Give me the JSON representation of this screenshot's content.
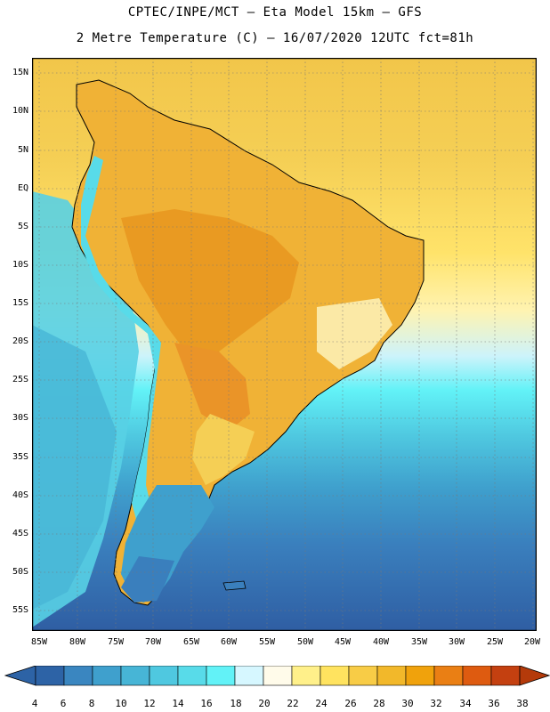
{
  "header": {
    "title_line1": "CPTEC/INPE/MCT –  Eta Model 15km – GFS",
    "title_line2": "2 Metre Temperature (C) – 16/07/2020 12UTC fct=81h"
  },
  "axes": {
    "latitude_labels": [
      "15N",
      "10N",
      "5N",
      "EQ",
      "5S",
      "10S",
      "15S",
      "20S",
      "25S",
      "30S",
      "35S",
      "40S",
      "45S",
      "50S",
      "55S"
    ],
    "longitude_labels": [
      "85W",
      "80W",
      "75W",
      "70W",
      "65W",
      "60W",
      "55W",
      "50W",
      "45W",
      "40W",
      "35W",
      "30W",
      "25W",
      "20W"
    ]
  },
  "colorbar": {
    "ticks": [
      "4",
      "6",
      "8",
      "10",
      "12",
      "14",
      "16",
      "18",
      "20",
      "22",
      "24",
      "26",
      "28",
      "30",
      "32",
      "34",
      "36",
      "38"
    ],
    "low_arrow_color": "#2d63a6",
    "high_arrow_color": "#b43a0a",
    "colors": [
      "#2d63a6",
      "#3a86c0",
      "#3fa0cd",
      "#47b5d6",
      "#4fc8e0",
      "#58dbe9",
      "#62f2f7",
      "#d6f7ff",
      "#fffbea",
      "#fff08a",
      "#ffe35f",
      "#f8cc46",
      "#f2b82a",
      "#f0a20c",
      "#ea7f14",
      "#de5b10",
      "#c44010"
    ]
  },
  "map_colors": {
    "ocean_south": "#2f5ea3",
    "ocean_mid": "#3f9fd0",
    "ocean_cool": "#5bd4e6",
    "ocean_warm": "#ffe35f",
    "ocean_tropical": "#f2c64a",
    "land_hot": "#eea02a",
    "land_warm": "#f5c04a",
    "andes_cold": "#58dbe9",
    "patagonia": "#3a86c0"
  }
}
